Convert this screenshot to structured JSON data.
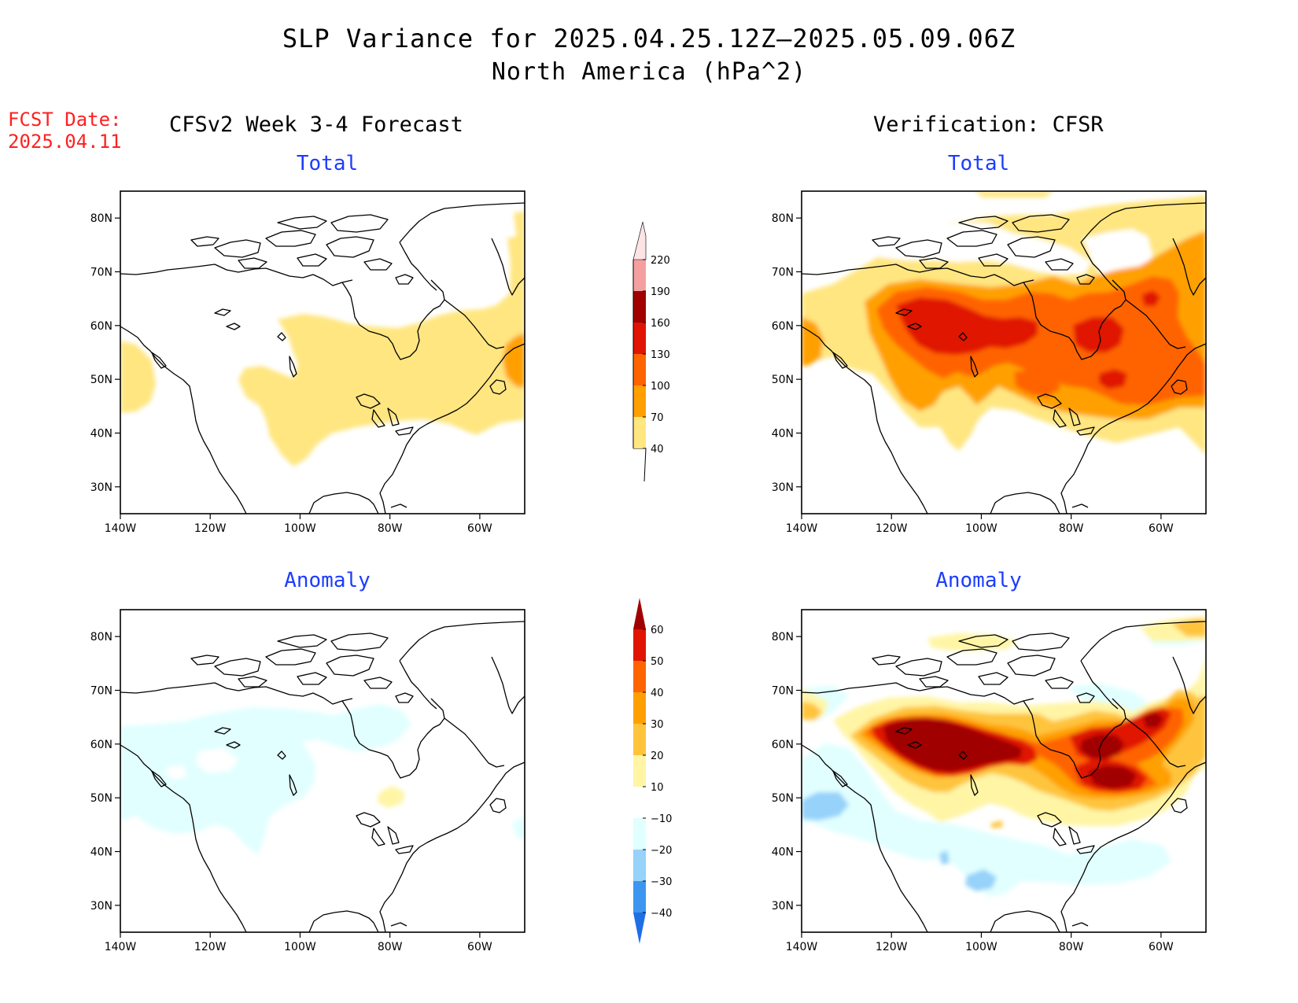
{
  "title": {
    "line1": "SLP Variance for 2025.04.25.12Z—2025.05.09.06Z",
    "line2": "North America (hPa^2)"
  },
  "fcst": {
    "label": "FCST Date:",
    "date": "2025.04.11"
  },
  "columns": {
    "left": "CFSv2 Week 3-4 Forecast",
    "right": "Verification: CFSR"
  },
  "panels": {
    "fcst_total": "Total",
    "verif_total": "Total",
    "fcst_anom": "Anomaly",
    "verif_anom": "Anomaly"
  },
  "axes": {
    "lat_labels": [
      "80N",
      "70N",
      "60N",
      "50N",
      "40N",
      "30N"
    ],
    "lon_labels": [
      "140W",
      "120W",
      "100W",
      "80W",
      "60W"
    ],
    "lat_values": [
      80,
      70,
      60,
      50,
      40,
      30
    ],
    "lon_values": [
      -140,
      -120,
      -100,
      -80,
      -60
    ],
    "lon_range": [
      -140,
      -50
    ],
    "lat_range": [
      25,
      85
    ]
  },
  "colorbars": {
    "total": {
      "labels": [
        "40",
        "70",
        "100",
        "130",
        "160",
        "190",
        "220"
      ],
      "colors": [
        "#ffe680",
        "#ffa000",
        "#ff6400",
        "#e01400",
        "#a00000",
        "#f4a0a0",
        "#fde4e4"
      ]
    },
    "anomaly": {
      "labels": [
        "−40",
        "−30",
        "−20",
        "−10",
        "10",
        "20",
        "30",
        "40",
        "50",
        "60"
      ],
      "colors": [
        "#1e6ee6",
        "#3c96f0",
        "#96d2fa",
        "#e1ffff",
        "#ffffff",
        "#fff5a5",
        "#ffc43c",
        "#ffa000",
        "#ff6400",
        "#e01400",
        "#a00000"
      ]
    }
  }
}
